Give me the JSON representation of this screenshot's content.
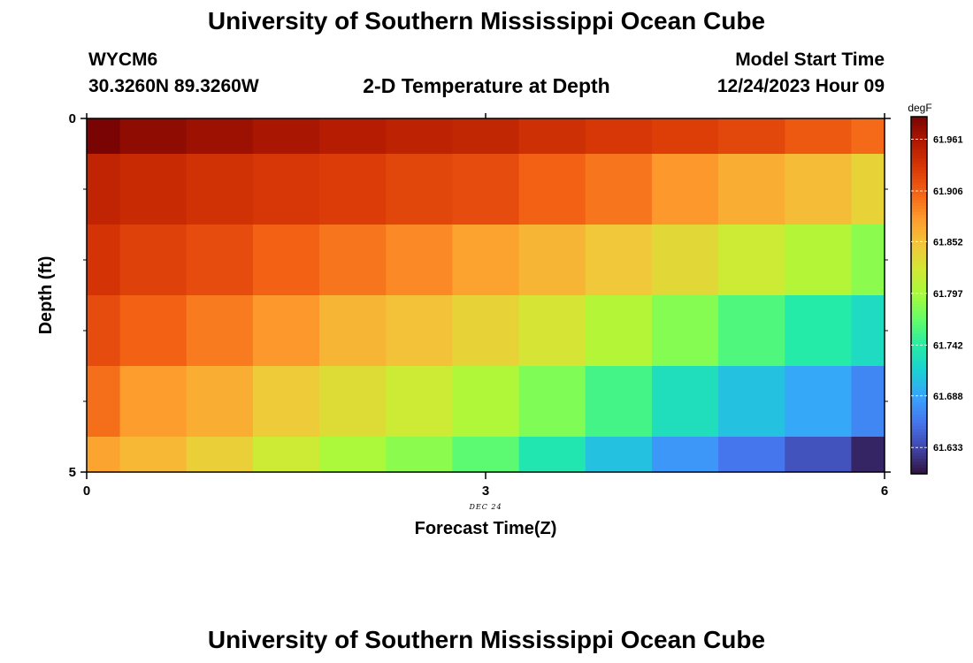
{
  "header": {
    "title": "University of Southern Mississippi Ocean Cube",
    "station_id": "WYCM6",
    "coords": "30.3260N  89.3260W",
    "plot_name": "2-D Temperature at Depth",
    "model_label": "Model Start Time",
    "model_time": "12/24/2023 Hour 09"
  },
  "footer": {
    "title": "University of Southern Mississippi Ocean Cube"
  },
  "chart_data": {
    "type": "heatmap",
    "xlabel": "Forecast Time(Z)",
    "ylabel": "Depth (ft)",
    "x_ticks": [
      "0",
      "3",
      "6"
    ],
    "y_ticks": [
      "0",
      "5"
    ],
    "x_annotation": "DEC 24",
    "xlim": [
      0,
      6
    ],
    "ylim": [
      0,
      5
    ],
    "y_inverted": true,
    "colorbar": {
      "unit": "degF",
      "ticks": [
        "61.961",
        "61.906",
        "61.852",
        "61.797",
        "61.742",
        "61.688",
        "61.633"
      ],
      "range": [
        61.605,
        61.985
      ],
      "colormap": [
        "#30123b",
        "#4145ab",
        "#4675ed",
        "#39a2fc",
        "#1bcfd4",
        "#24eca6",
        "#61fc6c",
        "#a4fc3b",
        "#d1e834",
        "#f3c63a",
        "#fe9b2d",
        "#f36315",
        "#d93806",
        "#b11901",
        "#7a0403"
      ]
    },
    "x_centers": [
      0,
      0.5,
      1,
      1.5,
      2,
      2.5,
      3,
      3.5,
      4,
      4.5,
      5,
      5.5,
      6
    ],
    "y_centers": [
      0,
      1,
      2,
      3,
      4,
      5
    ],
    "values": [
      [
        61.985,
        61.975,
        61.968,
        61.962,
        61.955,
        61.95,
        61.946,
        61.938,
        61.932,
        61.927,
        61.921,
        61.91,
        61.9
      ],
      [
        61.948,
        61.942,
        61.937,
        61.932,
        61.928,
        61.922,
        61.918,
        61.905,
        61.895,
        61.878,
        61.865,
        61.855,
        61.84
      ],
      [
        61.935,
        61.925,
        61.918,
        61.905,
        61.895,
        61.885,
        61.872,
        61.86,
        61.848,
        61.835,
        61.82,
        61.805,
        61.785
      ],
      [
        61.918,
        61.905,
        61.892,
        61.878,
        61.86,
        61.852,
        61.84,
        61.825,
        61.805,
        61.782,
        61.76,
        61.74,
        61.725
      ],
      [
        61.898,
        61.875,
        61.865,
        61.845,
        61.832,
        61.82,
        61.802,
        61.78,
        61.755,
        61.728,
        61.705,
        61.69,
        61.67
      ],
      [
        61.87,
        61.858,
        61.842,
        61.82,
        61.8,
        61.785,
        61.765,
        61.735,
        61.705,
        61.68,
        61.66,
        61.64,
        61.615
      ]
    ]
  }
}
